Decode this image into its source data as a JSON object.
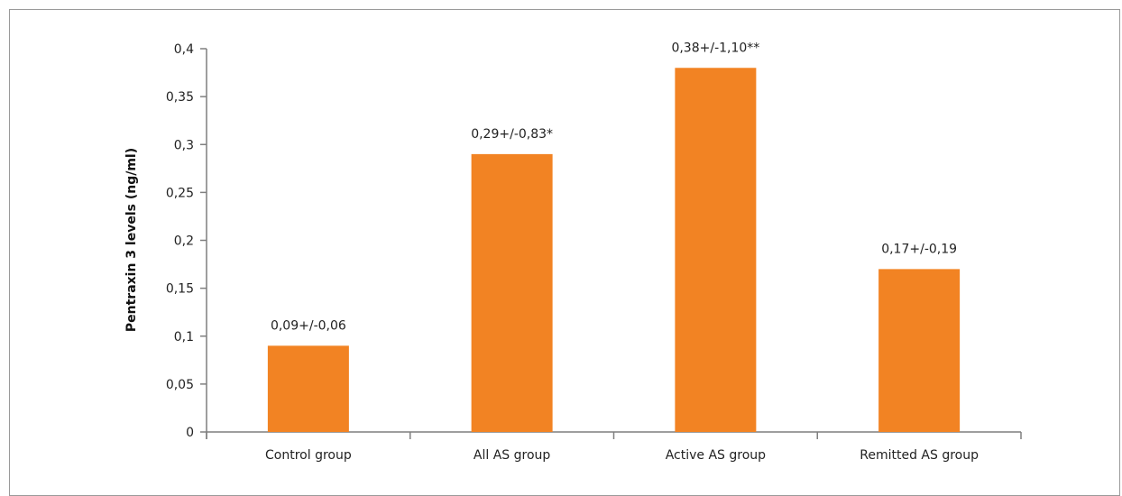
{
  "chart_data": {
    "type": "bar",
    "categories": [
      "Control group",
      "All AS group",
      "Active AS group",
      "Remitted AS group"
    ],
    "values": [
      0.09,
      0.29,
      0.38,
      0.17
    ],
    "data_labels": [
      "0,09+/-0,06",
      "0,29+/-0,83*",
      "0,38+/-1,10**",
      "0,17+/-0,19"
    ],
    "ylabel": "Pentraxin 3 levels (ng/ml)",
    "ylim": [
      0,
      0.4
    ],
    "yticks": [
      0,
      0.05,
      0.1,
      0.15,
      0.2,
      0.25,
      0.3,
      0.35,
      0.4
    ],
    "ytick_labels": [
      "0",
      "0,05",
      "0,1",
      "0,15",
      "0,2",
      "0,25",
      "0,3",
      "0,35",
      "0,4"
    ],
    "bar_color": "#f28323",
    "axis_color": "#7f7f7f",
    "grid": false,
    "legend": false
  }
}
